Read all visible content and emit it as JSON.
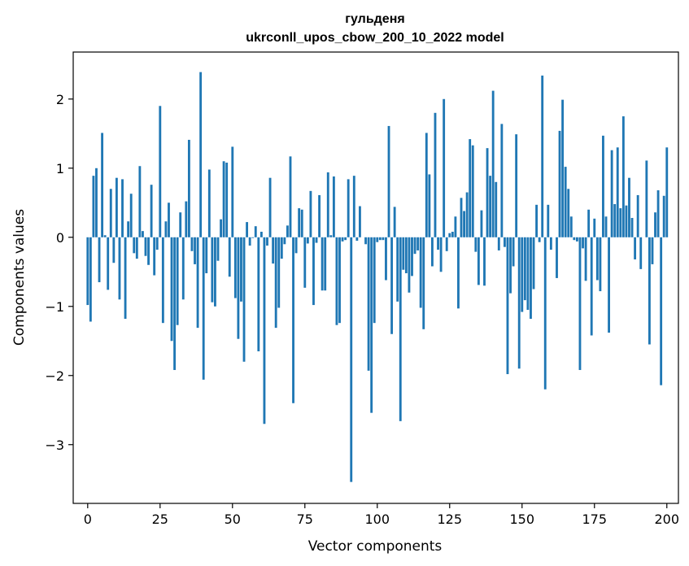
{
  "chart_data": {
    "type": "bar",
    "title": "гульденя",
    "subtitle": "ukrconll_upos_cbow_200_10_2022 model",
    "xlabel": "Vector components",
    "ylabel": "Components values",
    "xlim": [
      -5,
      204
    ],
    "ylim": [
      -3.85,
      2.68
    ],
    "xticks": [
      0,
      25,
      50,
      75,
      100,
      125,
      150,
      175,
      200
    ],
    "yticks": [
      -3,
      -2,
      -1,
      0,
      1,
      2
    ],
    "grid": false,
    "color": "#1f77b4",
    "values": [
      -0.98,
      -1.22,
      0.89,
      1.0,
      -0.65,
      1.51,
      0.03,
      -0.76,
      0.7,
      -0.37,
      0.86,
      -0.9,
      0.84,
      -1.18,
      0.23,
      0.63,
      -0.23,
      -0.31,
      1.03,
      0.09,
      -0.27,
      -0.4,
      0.76,
      -0.55,
      -0.18,
      1.9,
      -1.24,
      0.23,
      0.5,
      -1.5,
      -1.92,
      -1.27,
      0.36,
      -0.9,
      0.52,
      1.41,
      -0.2,
      -0.39,
      -1.31,
      2.39,
      -2.06,
      -0.52,
      0.98,
      -0.94,
      -1.0,
      -0.34,
      0.26,
      1.1,
      1.08,
      -0.57,
      1.31,
      -0.88,
      -1.47,
      -0.93,
      -1.8,
      0.22,
      -0.12,
      -0.01,
      0.16,
      -1.65,
      0.08,
      -2.7,
      -0.12,
      0.86,
      -0.38,
      -1.31,
      -1.02,
      -0.31,
      -0.1,
      0.17,
      1.17,
      -2.4,
      -0.23,
      0.42,
      0.4,
      -0.73,
      -0.09,
      0.67,
      -0.98,
      -0.08,
      0.61,
      -0.77,
      -0.77,
      0.94,
      0.03,
      0.88,
      -1.27,
      -1.24,
      -0.06,
      -0.04,
      0.84,
      -3.54,
      0.89,
      -0.05,
      0.45,
      0.0,
      -0.1,
      -1.93,
      -2.54,
      -1.24,
      -0.07,
      -0.04,
      -0.04,
      -0.62,
      1.61,
      -1.4,
      0.44,
      -0.93,
      -2.66,
      -0.47,
      -0.52,
      -0.8,
      -0.56,
      -0.24,
      -0.19,
      -1.02,
      -1.33,
      1.51,
      0.91,
      -0.42,
      1.8,
      -0.18,
      -0.5,
      2.0,
      -0.2,
      0.06,
      0.08,
      0.3,
      -1.03,
      0.57,
      0.38,
      0.65,
      1.42,
      1.33,
      -0.21,
      -0.69,
      0.39,
      -0.7,
      1.29,
      0.89,
      2.12,
      0.8,
      -0.19,
      1.64,
      -0.14,
      -1.98,
      -0.81,
      -0.42,
      1.49,
      -1.9,
      -1.08,
      -0.91,
      -1.05,
      -1.18,
      -0.75,
      0.47,
      -0.07,
      2.34,
      -2.2,
      0.47,
      -0.18,
      0.0,
      -0.59,
      1.54,
      1.99,
      1.02,
      0.7,
      0.3,
      -0.04,
      -0.06,
      -1.92,
      -0.16,
      -0.63,
      0.4,
      -1.42,
      0.27,
      -0.62,
      -0.78,
      1.47,
      0.3,
      -1.38,
      1.26,
      0.48,
      1.3,
      0.42,
      1.75,
      0.46,
      0.86,
      0.28,
      -0.32,
      0.61,
      -0.46,
      0.0,
      1.11,
      -1.55,
      -0.39,
      0.36,
      0.68,
      -2.14,
      0.6,
      1.3
    ]
  }
}
